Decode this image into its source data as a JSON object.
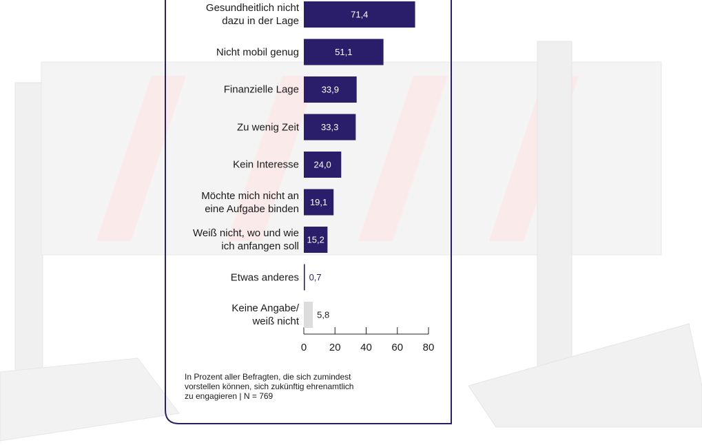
{
  "chart_data": {
    "type": "bar",
    "orientation": "horizontal",
    "categories": [
      "Gesundheitlich nicht\ndazu in der Lage",
      "Nicht mobil genug",
      "Finanzielle Lage",
      "Zu wenig Zeit",
      "Kein Interesse",
      "Möchte mich nicht an\neine Aufgabe binden",
      "Weiß nicht, wo und wie\nich anfangen soll",
      "Etwas anderes",
      "Keine Angabe/\nweiß nicht"
    ],
    "values": [
      71.4,
      51.1,
      33.9,
      33.3,
      24.0,
      19.1,
      15.2,
      0.7,
      5.8
    ],
    "value_labels": [
      "71,4",
      "51,1",
      "33,9",
      "33,3",
      "24,0",
      "19,1",
      "15,2",
      "0,7",
      "5,8"
    ],
    "colors": [
      "#2a1d69",
      "#2a1d69",
      "#2a1d69",
      "#2a1d69",
      "#2a1d69",
      "#2a1d69",
      "#2a1d69",
      "#2a1d69",
      "#dcdcdc"
    ],
    "value_label_colors": [
      "#ffffff",
      "#ffffff",
      "#ffffff",
      "#ffffff",
      "#ffffff",
      "#ffffff",
      "#ffffff",
      "#2a1d69",
      "#222222"
    ],
    "xlim": [
      0,
      80
    ],
    "xticks": [
      0,
      20,
      40,
      60,
      80
    ],
    "note": "In Prozent aller Befragten, die sich zumindest\nvorstellen können, sich zukünftig ehrenamtlich\nzu engagieren | N = 769"
  }
}
